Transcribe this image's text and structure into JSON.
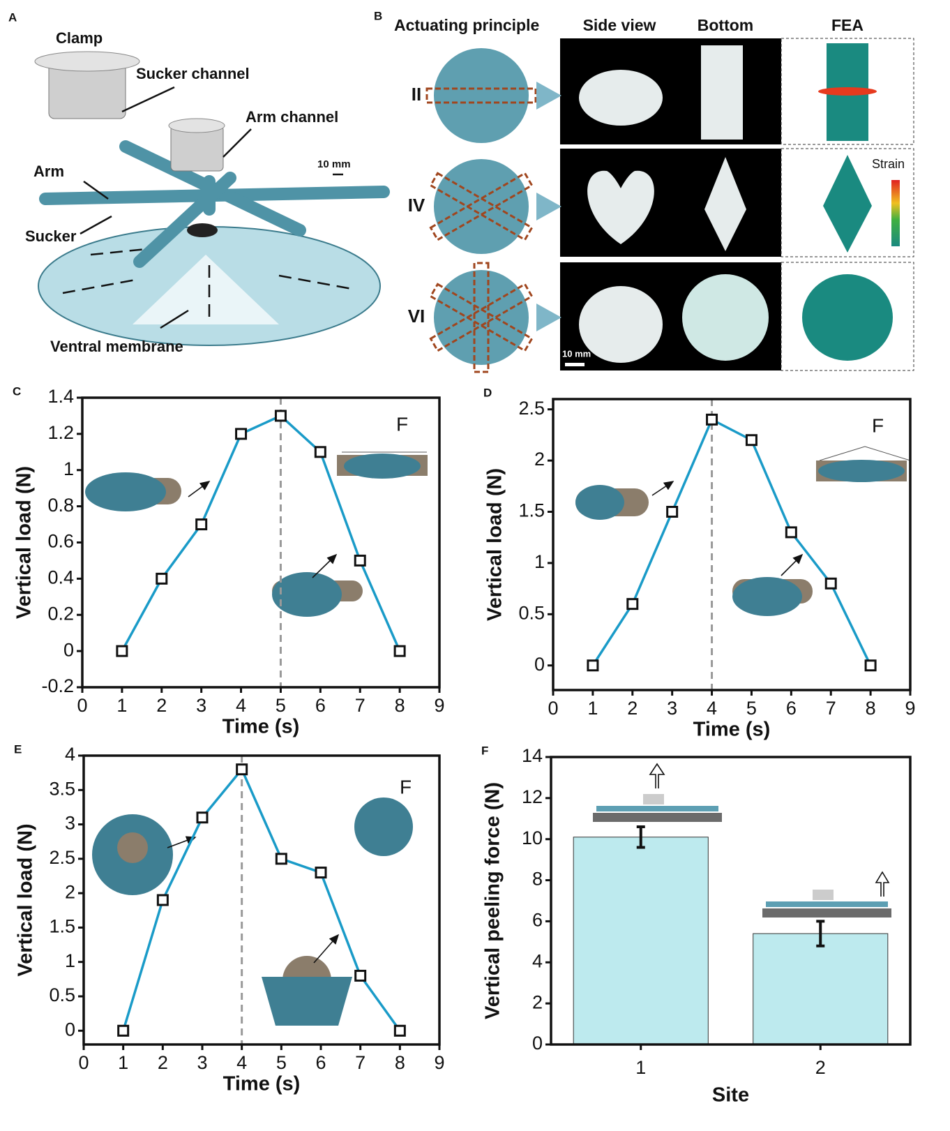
{
  "figure": {
    "panel_a": {
      "letter": "A",
      "labels": [
        "Clamp",
        "Sucker channel",
        "Arm channel",
        "10 mm",
        "Arm",
        "Sucker",
        "Ventral membrane"
      ]
    },
    "panel_b": {
      "letter": "B",
      "columns": [
        "Actuating principle",
        "Side view",
        "Bottom",
        "FEA"
      ],
      "rows": [
        "II",
        "IV",
        "VI"
      ],
      "strain": "Strain",
      "scale": "10 mm"
    }
  },
  "chart_data": [
    {
      "panel": "C",
      "type": "line",
      "xlabel": "Time (s)",
      "ylabel": "Vertical load (N)",
      "annotation": "F",
      "x": [
        1,
        2,
        3,
        4,
        5,
        6,
        7,
        8
      ],
      "values": [
        0,
        0.4,
        0.7,
        1.2,
        1.3,
        1.1,
        0.5,
        0
      ],
      "color": "#1a9bc8",
      "xlim": [
        0,
        9
      ],
      "ylim": [
        -0.2,
        1.4
      ],
      "xticks": [
        0,
        1,
        2,
        3,
        4,
        5,
        6,
        7,
        8,
        9
      ],
      "yticks": [
        -0.2,
        0,
        0.2,
        0.4,
        0.6,
        0.8,
        1,
        1.2,
        1.4
      ],
      "vline": 5
    },
    {
      "panel": "D",
      "type": "line",
      "xlabel": "Time (s)",
      "ylabel": "Vertical load (N)",
      "annotation": "F",
      "x": [
        1,
        2,
        3,
        4,
        5,
        6,
        7,
        8
      ],
      "values": [
        0,
        0.6,
        1.5,
        2.4,
        2.2,
        1.3,
        0.8,
        0
      ],
      "color": "#1a9bc8",
      "xlim": [
        0,
        9
      ],
      "ylim": [
        -0.24,
        2.6
      ],
      "xticks": [
        0,
        1,
        2,
        3,
        4,
        5,
        6,
        7,
        8,
        9
      ],
      "yticks": [
        0,
        0.5,
        1,
        1.5,
        2,
        2.5
      ],
      "vline": 4
    },
    {
      "panel": "E",
      "type": "line",
      "xlabel": "Time (s)",
      "ylabel": "Vertical load (N)",
      "annotation": "F",
      "x": [
        1,
        2,
        3,
        4,
        5,
        6,
        7,
        8
      ],
      "values": [
        0,
        1.9,
        3.1,
        3.8,
        2.5,
        2.3,
        0.8,
        0
      ],
      "color": "#1a9bc8",
      "xlim": [
        0,
        9
      ],
      "ylim": [
        -0.2,
        4
      ],
      "xticks": [
        0,
        1,
        2,
        3,
        4,
        5,
        6,
        7,
        8,
        9
      ],
      "yticks": [
        0,
        0.5,
        1,
        1.5,
        2,
        2.5,
        3,
        3.5,
        4
      ],
      "vline": 4
    },
    {
      "panel": "F",
      "type": "bar",
      "xlabel": "Site",
      "ylabel": "Vertical peeling force (N)",
      "categories": [
        "1",
        "2"
      ],
      "values": [
        10.1,
        5.4
      ],
      "errors": [
        0.5,
        0.6
      ],
      "color": "#bdeaee",
      "ylim": [
        0,
        14
      ],
      "yticks": [
        0,
        2,
        4,
        6,
        8,
        10,
        12,
        14
      ]
    }
  ]
}
